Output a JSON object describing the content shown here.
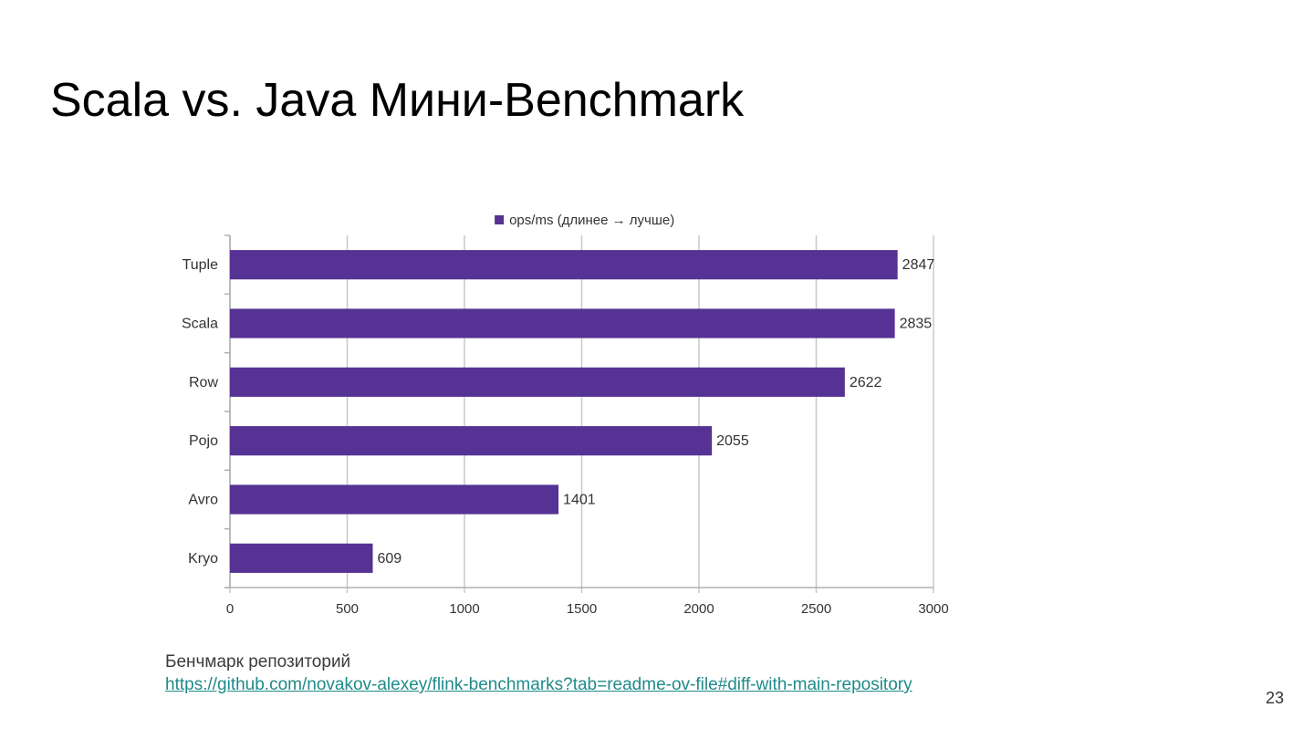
{
  "slide": {
    "title": "Scala vs. Java Мини-Benchmark",
    "caption": "Бенчмарк репозиторий",
    "link": "https://github.com/novakov-alexey/flink-benchmarks?tab=readme-ov-file#diff-with-main-repository",
    "page_number": "23"
  },
  "chart_data": {
    "type": "bar",
    "orientation": "horizontal",
    "categories": [
      "Tuple",
      "Scala",
      "Row",
      "Pojo",
      "Avro",
      "Kryo"
    ],
    "series": [
      {
        "name": "ops/ms (длинее → лучше)",
        "values": [
          2847,
          2835,
          2622,
          2055,
          1401,
          609
        ],
        "color": "#553293"
      }
    ],
    "xlim": [
      0,
      3000
    ],
    "xticks": [
      0,
      500,
      1000,
      1500,
      2000,
      2500,
      3000
    ],
    "grid": true,
    "legend_position": "top",
    "data_labels": true
  }
}
